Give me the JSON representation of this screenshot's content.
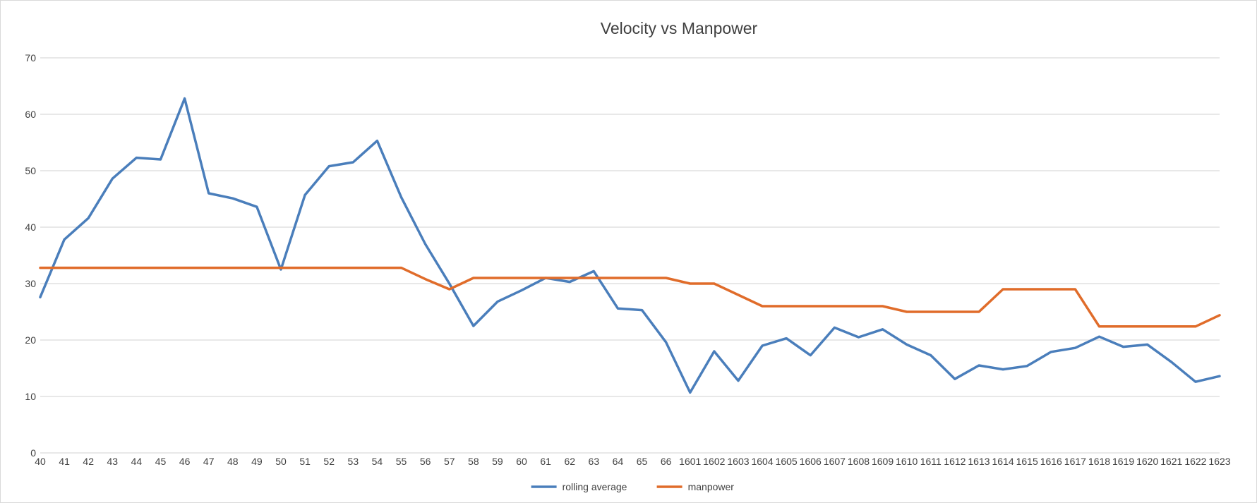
{
  "chart_data": {
    "type": "line",
    "title": "Velocity vs Manpower",
    "xlabel": "",
    "ylabel": "",
    "ylim": [
      0,
      70
    ],
    "yticks": [
      0,
      10,
      20,
      30,
      40,
      50,
      60,
      70
    ],
    "grid": true,
    "legend_position": "bottom",
    "categories": [
      "40",
      "41",
      "42",
      "43",
      "44",
      "45",
      "46",
      "47",
      "48",
      "49",
      "50",
      "51",
      "52",
      "53",
      "54",
      "55",
      "56",
      "57",
      "58",
      "59",
      "60",
      "61",
      "62",
      "63",
      "64",
      "65",
      "66",
      "1601",
      "1602",
      "1603",
      "1604",
      "1605",
      "1606",
      "1607",
      "1608",
      "1609",
      "1610",
      "1611",
      "1612",
      "1613",
      "1614",
      "1615",
      "1616",
      "1617",
      "1618",
      "1619",
      "1620",
      "1621",
      "1622",
      "1623"
    ],
    "series": [
      {
        "name": "rolling average",
        "color": "#4a7ebb",
        "values": [
          27.6,
          37.8,
          41.6,
          48.6,
          52.3,
          52.0,
          62.8,
          46.0,
          45.1,
          43.6,
          32.5,
          45.7,
          50.8,
          51.5,
          55.3,
          45.3,
          37.0,
          30.0,
          22.5,
          26.8,
          28.8,
          31.0,
          30.3,
          32.2,
          25.6,
          25.3,
          19.6,
          10.7,
          18.0,
          12.8,
          19.0,
          20.3,
          17.3,
          22.2,
          20.5,
          21.9,
          19.2,
          17.3,
          13.1,
          15.5,
          14.8,
          15.4,
          17.9,
          18.6,
          20.6,
          18.8,
          19.2,
          16.1,
          12.6,
          13.6
        ]
      },
      {
        "name": "manpower",
        "color": "#e06c2a",
        "values": [
          32.8,
          32.8,
          32.8,
          32.8,
          32.8,
          32.8,
          32.8,
          32.8,
          32.8,
          32.8,
          32.8,
          32.8,
          32.8,
          32.8,
          32.8,
          32.8,
          30.8,
          29.0,
          31.0,
          31.0,
          31.0,
          31.0,
          31.0,
          31.0,
          31.0,
          31.0,
          31.0,
          30.0,
          30.0,
          28.0,
          26.0,
          26.0,
          26.0,
          26.0,
          26.0,
          26.0,
          25.0,
          25.0,
          25.0,
          25.0,
          29.0,
          29.0,
          29.0,
          29.0,
          22.4,
          22.4,
          22.4,
          22.4,
          22.4,
          24.4
        ]
      }
    ]
  },
  "colors": {
    "gridline": "#d9d9d9",
    "text": "#404040",
    "background": "#ffffff"
  }
}
